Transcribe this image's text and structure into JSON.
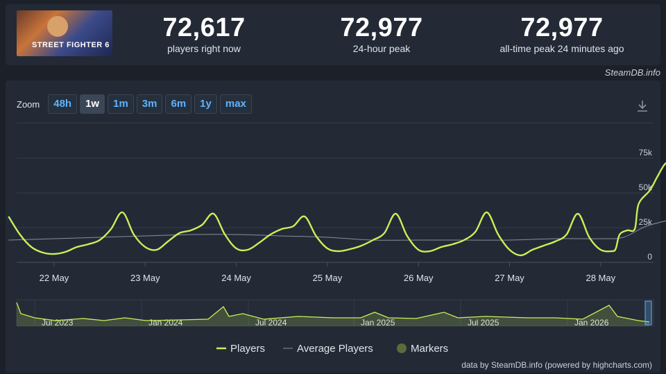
{
  "game": {
    "thumbnail_text": "STREET FIGHTER 6"
  },
  "stats": [
    {
      "value": "72,617",
      "label": "players right now"
    },
    {
      "value": "72,977",
      "label": "24-hour peak"
    },
    {
      "value": "72,977",
      "label": "all-time peak 24 minutes ago"
    }
  ],
  "brand": "SteamDB.info",
  "zoom": {
    "label": "Zoom",
    "options": [
      "48h",
      "1w",
      "1m",
      "3m",
      "6m",
      "1y",
      "max"
    ],
    "selected": "1w"
  },
  "download_icon": "download-icon",
  "colors": {
    "players": "#c8f05a",
    "average": "#8a9099",
    "markers": "#5b6b3a"
  },
  "chart_data": {
    "type": "line",
    "ylim": [
      0,
      80000
    ],
    "y_ticks": [
      "0",
      "25k",
      "50k",
      "75k"
    ],
    "x_ticks": [
      "22 May",
      "23 May",
      "24 May",
      "25 May",
      "26 May",
      "27 May",
      "28 May"
    ],
    "series": [
      {
        "name": "Players",
        "points": [
          [
            "21 May 12:00",
            33000
          ],
          [
            "21 May 15:00",
            20000
          ],
          [
            "21 May 18:00",
            11000
          ],
          [
            "21 May 21:00",
            7000
          ],
          [
            "22 May 00:00",
            6000
          ],
          [
            "22 May 03:00",
            7500
          ],
          [
            "22 May 06:00",
            11000
          ],
          [
            "22 May 09:00",
            13000
          ],
          [
            "22 May 12:00",
            16000
          ],
          [
            "22 May 15:00",
            24000
          ],
          [
            "22 May 18:00",
            36000
          ],
          [
            "22 May 21:00",
            20000
          ],
          [
            "23 May 00:00",
            11000
          ],
          [
            "23 May 03:00",
            9000
          ],
          [
            "23 May 06:00",
            15000
          ],
          [
            "23 May 09:00",
            21000
          ],
          [
            "23 May 12:00",
            23000
          ],
          [
            "23 May 15:00",
            27000
          ],
          [
            "23 May 18:00",
            35000
          ],
          [
            "23 May 21:00",
            20000
          ],
          [
            "24 May 00:00",
            10000
          ],
          [
            "24 May 03:00",
            9000
          ],
          [
            "24 May 06:00",
            14000
          ],
          [
            "24 May 09:00",
            20000
          ],
          [
            "24 May 12:00",
            24000
          ],
          [
            "24 May 15:00",
            26000
          ],
          [
            "24 May 18:00",
            33000
          ],
          [
            "24 May 21:00",
            19000
          ],
          [
            "25 May 00:00",
            10000
          ],
          [
            "25 May 03:00",
            8000
          ],
          [
            "25 May 06:00",
            9500
          ],
          [
            "25 May 09:00",
            12000
          ],
          [
            "25 May 12:00",
            16000
          ],
          [
            "25 May 15:00",
            21000
          ],
          [
            "25 May 18:00",
            35000
          ],
          [
            "25 May 21:00",
            19000
          ],
          [
            "26 May 00:00",
            9000
          ],
          [
            "26 May 03:00",
            8000
          ],
          [
            "26 May 06:00",
            11000
          ],
          [
            "26 May 09:00",
            13000
          ],
          [
            "26 May 12:00",
            16000
          ],
          [
            "26 May 15:00",
            22000
          ],
          [
            "26 May 18:00",
            36000
          ],
          [
            "26 May 21:00",
            20000
          ],
          [
            "27 May 00:00",
            9000
          ],
          [
            "27 May 03:00",
            5000
          ],
          [
            "27 May 06:00",
            9000
          ],
          [
            "27 May 09:00",
            12000
          ],
          [
            "27 May 12:00",
            15000
          ],
          [
            "27 May 15:00",
            20000
          ],
          [
            "27 May 18:00",
            35000
          ],
          [
            "27 May 21:00",
            18000
          ],
          [
            "28 May 00:00",
            9000
          ],
          [
            "28 May 03:00",
            8000
          ],
          [
            "28 May 04:00",
            10000
          ],
          [
            "28 May 05:00",
            20000
          ],
          [
            "28 May 07:00",
            23000
          ],
          [
            "28 May 09:00",
            24000
          ],
          [
            "28 May 10:00",
            42000
          ],
          [
            "28 May 13:00",
            52000
          ],
          [
            "28 May 15:00",
            62000
          ],
          [
            "28 May 17:00",
            71000
          ],
          [
            "28 May 19:00",
            72977
          ]
        ]
      },
      {
        "name": "Average Players",
        "points": [
          [
            "21 May 12:00",
            16000
          ],
          [
            "22 May 00:00",
            17000
          ],
          [
            "22 May 12:00",
            18000
          ],
          [
            "23 May 00:00",
            19000
          ],
          [
            "23 May 12:00",
            20000
          ],
          [
            "24 May 00:00",
            20000
          ],
          [
            "24 May 12:00",
            19000
          ],
          [
            "25 May 00:00",
            18000
          ],
          [
            "25 May 12:00",
            16000
          ],
          [
            "26 May 00:00",
            16000
          ],
          [
            "26 May 12:00",
            16000
          ],
          [
            "27 May 00:00",
            16000
          ],
          [
            "27 May 12:00",
            17000
          ],
          [
            "28 May 00:00",
            17000
          ],
          [
            "28 May 06:00",
            18000
          ],
          [
            "28 May 12:00",
            26000
          ],
          [
            "28 May 19:00",
            31000
          ]
        ]
      }
    ],
    "legend": [
      "Players",
      "Average Players",
      "Markers"
    ],
    "legend_position": "bottom",
    "navigator": {
      "labels": [
        "Jul 2023",
        "Jan 2024",
        "Jul 2024",
        "Jan 2025",
        "Jul 2025",
        "Jan 2026"
      ]
    },
    "credit": "data by SteamDB.info (powered by highcharts.com)"
  }
}
